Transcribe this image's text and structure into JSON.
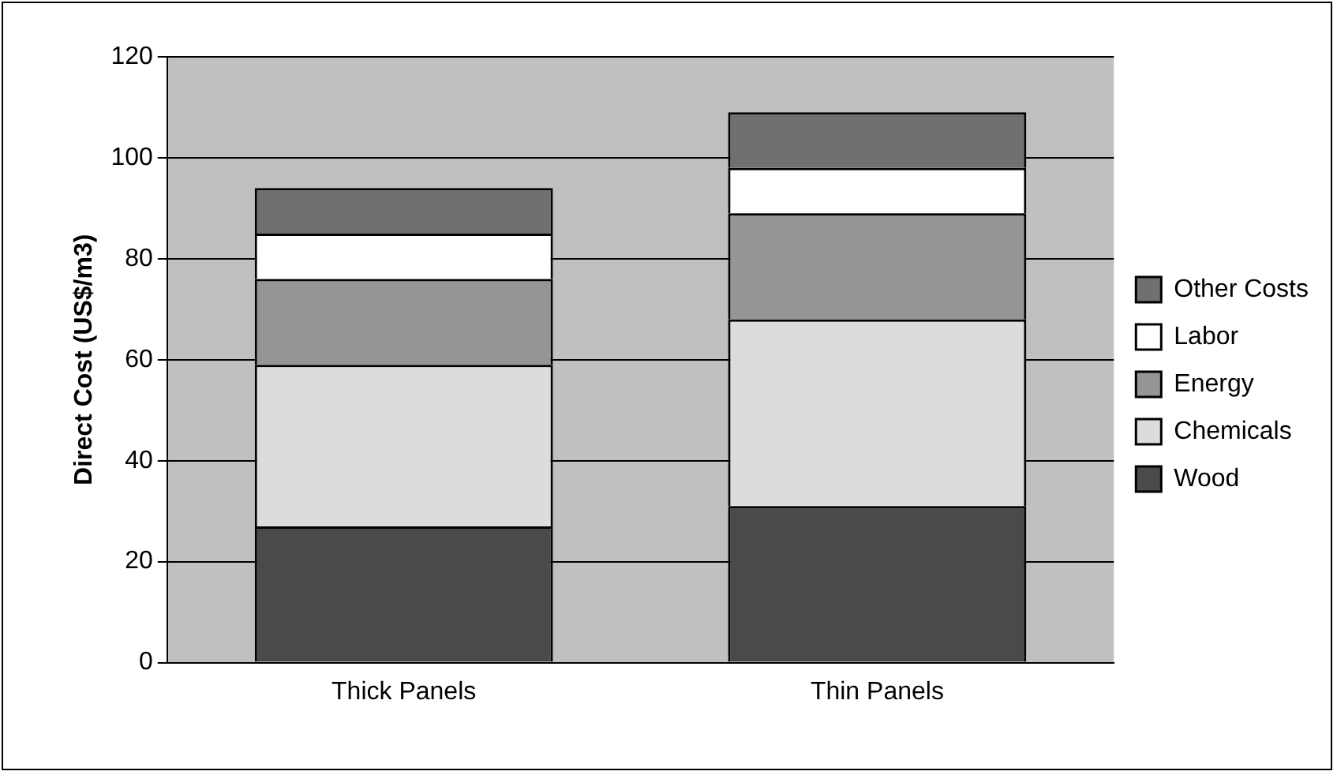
{
  "chart_data": {
    "type": "bar",
    "stacked": true,
    "categories": [
      "Thick Panels",
      "Thin Panels"
    ],
    "ylabel": "Direct Cost (US$/m3)",
    "ylim": [
      0,
      120
    ],
    "yticks": [
      0,
      20,
      40,
      60,
      80,
      100,
      120
    ],
    "grid": "y",
    "legend": "right",
    "series": [
      {
        "name": "Wood",
        "color": "#4a4a4a",
        "values": [
          27,
          31
        ]
      },
      {
        "name": "Chemicals",
        "color": "#dcdcdc",
        "values": [
          32,
          37
        ]
      },
      {
        "name": "Energy",
        "color": "#959595",
        "values": [
          17,
          21
        ]
      },
      {
        "name": "Labor",
        "color": "#ffffff",
        "values": [
          9,
          9
        ]
      },
      {
        "name": "Other Costs",
        "color": "#707070",
        "values": [
          9,
          11
        ]
      }
    ]
  }
}
